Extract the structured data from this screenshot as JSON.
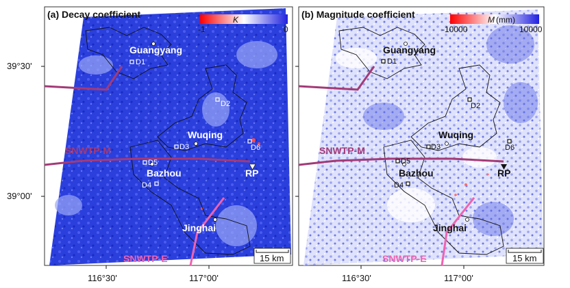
{
  "panels": [
    {
      "id": "a",
      "title": "(a) Decay coefficient",
      "colorbar": {
        "symbol": "K",
        "unit": "",
        "min_label": "-1",
        "max_label": "0",
        "low_color": "#ff0000",
        "mid_color": "#ffffff",
        "high_color": "#2020e0"
      },
      "places": {
        "guangyang": "Guangyang",
        "wuqing": "Wuqing",
        "bazhou": "Bazhou",
        "jinghai": "Jinghai",
        "rp": "RP"
      },
      "points": {
        "d1": "D1",
        "d2": "D2",
        "d3": "D3",
        "d4": "D4",
        "d5": "D5",
        "d6": "D6"
      },
      "routes": {
        "middle": "SNWTP-M",
        "east": "SNWTP-E"
      },
      "scale_bar": "15 km"
    },
    {
      "id": "b",
      "title": "(b) Magnitude coefficient",
      "colorbar": {
        "symbol": "M",
        "unit": "(mm)",
        "min_label": "-10000",
        "max_label": "10000",
        "low_color": "#ff0000",
        "mid_color": "#ffffff",
        "high_color": "#2020e0"
      },
      "places": {
        "guangyang": "Guangyang",
        "wuqing": "Wuqing",
        "bazhou": "Bazhou",
        "jinghai": "Jinghai",
        "rp": "RP"
      },
      "points": {
        "d1": "D1",
        "d2": "D2",
        "d3": "D3",
        "d4": "D4",
        "d5": "D5",
        "d6": "D6"
      },
      "routes": {
        "middle": "SNWTP-M",
        "east": "SNWTP-E"
      },
      "scale_bar": "15 km"
    }
  ],
  "axes": {
    "lat_labels": [
      "39°30'",
      "39°00'"
    ],
    "lon_labels": [
      "116°30'",
      "117°00'"
    ]
  },
  "colors": {
    "route_middle": "#a33a77",
    "route_east": "#f062b0",
    "panel_a_fill": "#2b3fdc",
    "panel_b_fill": "#c9cdf5"
  }
}
